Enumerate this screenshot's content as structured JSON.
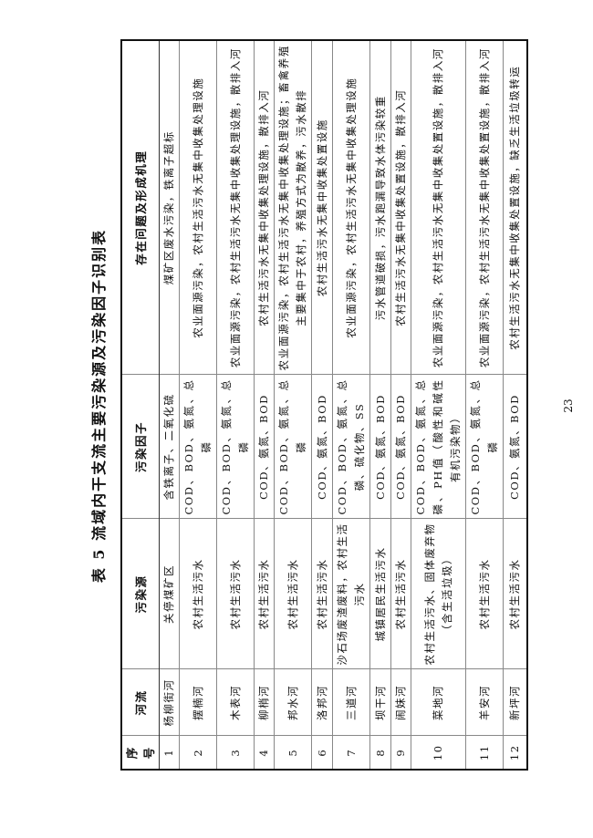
{
  "title": "表 5  流域内干支流主要污染源及污染因子识别表",
  "page_number": "23",
  "table": {
    "headers": [
      "序号",
      "河流",
      "污染源",
      "污染因子",
      "存在问题及形成机理"
    ],
    "rows": [
      {
        "no": "1",
        "river": "杨柳街河",
        "source": "关停煤矿区",
        "factor": "含铁离子、二氧化硫",
        "problem": "煤矿区废水污染，铁离子超标"
      },
      {
        "no": "2",
        "river": "摆楠河",
        "source": "农村生活污水",
        "factor": "COD、BOD、氨氮、总磷",
        "problem": "农业面源污染，农村生活污水无集中收集处理设施"
      },
      {
        "no": "3",
        "river": "木表河",
        "source": "农村生活污水",
        "factor": "COD、BOD、氨氮、总磷",
        "problem": "农业面源污染，农村生活污水无集中收集处理设施，散排入河"
      },
      {
        "no": "4",
        "river": "柳梢河",
        "source": "农村生活污水",
        "factor": "COD、氨氮、BOD",
        "problem": "农村生活污水无集中收集处理设施，散排入河"
      },
      {
        "no": "5",
        "river": "邦水河",
        "source": "农村生活污水",
        "factor": "COD、BOD、氨氮、总磷",
        "problem": "农业面源污染，农村生活污水无集中收集处理设施；畜禽养殖主要集中于农村，养殖方式为散养，污水散排"
      },
      {
        "no": "6",
        "river": "洛邦河",
        "source": "农村生活污水",
        "factor": "COD、氨氮、BOD",
        "problem": "农村生活污水无集中收集处置设施"
      },
      {
        "no": "7",
        "river": "三道河",
        "source": "沙石场废渣废料，农村生活污水",
        "factor": "COD、BOD、氨氮、总磷、硫化物、SS",
        "problem": "农业面源污染，农村生活污水无集中收集处理设施"
      },
      {
        "no": "8",
        "river": "坝干河",
        "source": "城镇居民生活污水",
        "factor": "COD、氨氮、BOD",
        "problem": "污水管道破损，污水跑漏导致水体污染较重"
      },
      {
        "no": "9",
        "river": "闹妹河",
        "source": "农村生活污水",
        "factor": "COD、氨氮、BOD",
        "problem": "农村生活污水无集中收集处置设施，散排入河"
      },
      {
        "no": "10",
        "river": "菜地河",
        "source": "农村生活污水、固体废弃物（含生活垃圾）",
        "factor": "COD、BOD、氨氮、总磷、PH值（酸性和碱性有机污染物）",
        "problem": "农业面源污染，农村生活污水无集中收集处置设施，散排入河"
      },
      {
        "no": "11",
        "river": "羊安河",
        "source": "农村生活污水",
        "factor": "COD、BOD、氨氮、总磷",
        "problem": "农业面源污染，农村生活污水无集中收集处置设施，散排入河"
      },
      {
        "no": "12",
        "river": "新坪河",
        "source": "农村生活污水",
        "factor": "COD、氨氮、BOD",
        "problem": "农村生活污水无集中收集处置设施，缺乏生活垃圾转运"
      }
    ]
  }
}
